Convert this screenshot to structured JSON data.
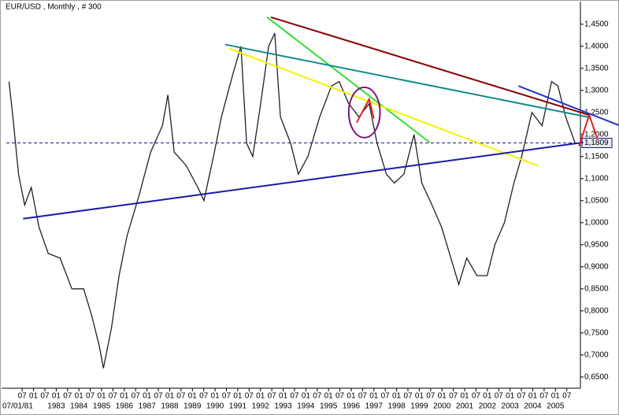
{
  "chart_data": {
    "type": "line",
    "title": "EUR/USD , Monthly , # 300",
    "color": "#202020",
    "x": [
      1980.92,
      1981.09,
      1981.34,
      1981.61,
      1981.9,
      1982.24,
      1982.65,
      1983.17,
      1983.69,
      1984.21,
      1984.56,
      1984.9,
      1985.08,
      1985.43,
      1985.77,
      1986.12,
      1986.64,
      1987.16,
      1987.68,
      1987.92,
      1988.2,
      1988.72,
      1989.24,
      1989.51,
      1989.93,
      1990.28,
      1990.8,
      1991.14,
      1991.39,
      1991.66,
      1992.01,
      1992.36,
      1992.63,
      1992.88,
      1993.33,
      1993.67,
      1994.09,
      1994.61,
      1995.13,
      1995.47,
      1995.89,
      1996.34,
      1996.79,
      1997.14,
      1997.55,
      1997.9,
      1998.32,
      1998.77,
      1999.11,
      1999.56,
      1999.98,
      2000.39,
      2000.74,
      2001.09,
      2001.54,
      2001.99,
      2002.33,
      2002.75,
      2003.17,
      2003.51,
      2003.96,
      2004.41,
      2004.83,
      2005.11,
      2005.45,
      2005.87
    ],
    "values": [
      1.32,
      1.24,
      1.11,
      1.04,
      1.08,
      0.99,
      0.93,
      0.92,
      0.85,
      0.85,
      0.79,
      0.72,
      0.67,
      0.76,
      0.88,
      0.97,
      1.06,
      1.16,
      1.22,
      1.29,
      1.16,
      1.13,
      1.08,
      1.05,
      1.15,
      1.24,
      1.34,
      1.4,
      1.18,
      1.15,
      1.27,
      1.4,
      1.43,
      1.24,
      1.18,
      1.11,
      1.15,
      1.24,
      1.31,
      1.32,
      1.27,
      1.24,
      1.27,
      1.18,
      1.11,
      1.09,
      1.11,
      1.2,
      1.09,
      1.04,
      0.99,
      0.92,
      0.86,
      0.92,
      0.88,
      0.88,
      0.95,
      1,
      1.09,
      1.15,
      1.25,
      1.22,
      1.32,
      1.31,
      1.24,
      1.18
    ],
    "xlim": [
      1980.8,
      2006.1
    ],
    "ylim": [
      0.63,
      1.48
    ],
    "yticks": [
      {
        "value": 0.65,
        "label": "0,6500"
      },
      {
        "value": 0.7,
        "label": "0,7000"
      },
      {
        "value": 0.75,
        "label": "0,7500"
      },
      {
        "value": 0.8,
        "label": "0,8000"
      },
      {
        "value": 0.85,
        "label": "0,8500"
      },
      {
        "value": 0.9,
        "label": "0,9000"
      },
      {
        "value": 0.95,
        "label": "0,9500"
      },
      {
        "value": 1,
        "label": "1,0000"
      },
      {
        "value": 1.05,
        "label": "1,0500"
      },
      {
        "value": 1.1,
        "label": "1,1000"
      },
      {
        "value": 1.15,
        "label": "1,1500"
      },
      {
        "value": 1.2,
        "label": "1,2000"
      },
      {
        "value": 1.25,
        "label": "1,2500"
      },
      {
        "value": 1.3,
        "label": "1,3000"
      },
      {
        "value": 1.35,
        "label": "1,3500"
      },
      {
        "value": 1.4,
        "label": "1,4000"
      },
      {
        "value": 1.45,
        "label": "1,4500"
      }
    ],
    "xticks": [
      {
        "value": 1981.5,
        "label": "07"
      },
      {
        "value": 1982,
        "label": "01"
      },
      {
        "value": 1982.5,
        "label": "07"
      },
      {
        "value": 1983,
        "label": "01"
      },
      {
        "value": 1983.5,
        "label": "07"
      },
      {
        "value": 1984,
        "label": "01"
      },
      {
        "value": 1984.5,
        "label": "07"
      },
      {
        "value": 1985,
        "label": "01"
      },
      {
        "value": 1985.5,
        "label": "07"
      },
      {
        "value": 1986,
        "label": "01"
      },
      {
        "value": 1986.5,
        "label": "07"
      },
      {
        "value": 1987,
        "label": "01"
      },
      {
        "value": 1987.5,
        "label": "07"
      },
      {
        "value": 1988,
        "label": "01"
      },
      {
        "value": 1988.5,
        "label": "07"
      },
      {
        "value": 1989,
        "label": "01"
      },
      {
        "value": 1989.5,
        "label": "07"
      },
      {
        "value": 1990,
        "label": "01"
      },
      {
        "value": 1990.5,
        "label": "07"
      },
      {
        "value": 1991,
        "label": "01"
      },
      {
        "value": 1991.5,
        "label": "07"
      },
      {
        "value": 1992,
        "label": "01"
      },
      {
        "value": 1992.5,
        "label": "07"
      },
      {
        "value": 1993,
        "label": "01"
      },
      {
        "value": 1993.5,
        "label": "07"
      },
      {
        "value": 1994,
        "label": "01"
      },
      {
        "value": 1994.5,
        "label": "07"
      },
      {
        "value": 1995,
        "label": "01"
      },
      {
        "value": 1995.5,
        "label": "07"
      },
      {
        "value": 1996,
        "label": "01"
      },
      {
        "value": 1996.5,
        "label": "07"
      },
      {
        "value": 1997,
        "label": "01"
      },
      {
        "value": 1997.5,
        "label": "07"
      },
      {
        "value": 1998,
        "label": "01"
      },
      {
        "value": 1998.5,
        "label": "07"
      },
      {
        "value": 1999,
        "label": "01"
      },
      {
        "value": 1999.5,
        "label": "07"
      },
      {
        "value": 2000,
        "label": "01"
      },
      {
        "value": 2000.5,
        "label": "07"
      },
      {
        "value": 2001,
        "label": "01"
      },
      {
        "value": 2001.5,
        "label": "07"
      },
      {
        "value": 2002,
        "label": "01"
      },
      {
        "value": 2002.5,
        "label": "07"
      },
      {
        "value": 2003,
        "label": "01"
      },
      {
        "value": 2003.5,
        "label": "07"
      },
      {
        "value": 2004,
        "label": "01"
      },
      {
        "value": 2004.5,
        "label": "07"
      },
      {
        "value": 2005,
        "label": "01"
      },
      {
        "value": 2005.5,
        "label": "07"
      }
    ],
    "x_year_labels": [
      {
        "value": 1981.5,
        "label": "07/01/81"
      },
      {
        "value": 1983,
        "label": "1983"
      },
      {
        "value": 1984,
        "label": "1984"
      },
      {
        "value": 1985,
        "label": "1985"
      },
      {
        "value": 1986,
        "label": "1986"
      },
      {
        "value": 1987,
        "label": "1987"
      },
      {
        "value": 1988,
        "label": "1988"
      },
      {
        "value": 1989,
        "label": "1989"
      },
      {
        "value": 1990,
        "label": "1990"
      },
      {
        "value": 1991,
        "label": "1991"
      },
      {
        "value": 1992,
        "label": "1992"
      },
      {
        "value": 1993,
        "label": "1993"
      },
      {
        "value": 1994,
        "label": "1994"
      },
      {
        "value": 1995,
        "label": "1995"
      },
      {
        "value": 1996,
        "label": "1996"
      },
      {
        "value": 1997,
        "label": "1997"
      },
      {
        "value": 1998,
        "label": "1998"
      },
      {
        "value": 1999,
        "label": "1999"
      },
      {
        "value": 2000,
        "label": "2000"
      },
      {
        "value": 2001,
        "label": "2001"
      },
      {
        "value": 2002,
        "label": "2002"
      },
      {
        "value": 2003,
        "label": "2003"
      },
      {
        "value": 2004,
        "label": "2004"
      },
      {
        "value": 2005,
        "label": "2005"
      }
    ],
    "last_price": {
      "value": 1.1809,
      "label": "1,1809"
    },
    "trend_lines": [
      {
        "color": "#8b0000",
        "x": [
          1992.46,
          2006.49
        ],
        "y": [
          1.466,
          1.244
        ]
      },
      {
        "color": "#33dd33",
        "x": [
          1992.29,
          1999.46
        ],
        "y": [
          1.466,
          1.182
        ]
      },
      {
        "color": "#138a8a",
        "x": [
          1990.45,
          2006.49
        ],
        "y": [
          1.404,
          1.239
        ]
      },
      {
        "color": "#f2f200",
        "x": [
          1990.62,
          2004.24
        ],
        "y": [
          1.395,
          1.129
        ]
      },
      {
        "color": "#1a1aaa",
        "x": [
          1981.54,
          2006.22
        ],
        "y": [
          1.009,
          1.182
        ]
      },
      {
        "color": "#2233cc",
        "x": [
          2003.37,
          2007.8
        ],
        "y": [
          1.31,
          1.221
        ]
      },
      {
        "color": "#e02020",
        "x": [
          2006.04,
          2006.49,
          2006.84
        ],
        "y": [
          1.174,
          1.244,
          1.191
        ]
      },
      {
        "color": "#e02020",
        "x": [
          1996.24,
          1996.79,
          1997
        ],
        "y": [
          1.227,
          1.28,
          1.236
        ]
      }
    ],
    "ellipse": {
      "color": "#7a1a7a",
      "cx": 1996.58,
      "cy": 1.25,
      "rx": 0.69,
      "ry": 0.057
    }
  }
}
